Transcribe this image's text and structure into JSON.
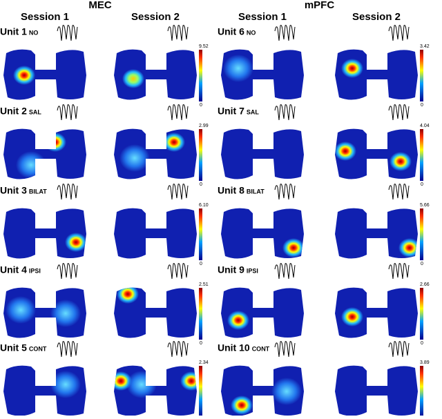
{
  "groups": [
    {
      "title": "MEC",
      "sessions": [
        "Session 1",
        "Session 2"
      ],
      "units": [
        {
          "name": "Unit 1",
          "condition": "NO",
          "colorbar": {
            "max": "9.52",
            "min": "0"
          }
        },
        {
          "name": "Unit 2",
          "condition": "SAL",
          "colorbar": {
            "max": "2.99",
            "min": "0"
          }
        },
        {
          "name": "Unit 3",
          "condition": "BILAT",
          "colorbar": {
            "max": "6.10",
            "min": "0"
          }
        },
        {
          "name": "Unit 4",
          "condition": "IPSI",
          "colorbar": {
            "max": "2.51",
            "min": "0"
          }
        },
        {
          "name": "Unit 5",
          "condition": "CONT",
          "colorbar": {
            "max": "2.34",
            "min": "0"
          }
        }
      ]
    },
    {
      "title": "mPFC",
      "sessions": [
        "Session 1",
        "Session 2"
      ],
      "units": [
        {
          "name": "Unit 6",
          "condition": "NO",
          "colorbar": {
            "max": "3.42",
            "min": "0"
          }
        },
        {
          "name": "Unit 7",
          "condition": "SAL",
          "colorbar": {
            "max": "4.04",
            "min": "0"
          }
        },
        {
          "name": "Unit 8",
          "condition": "BILAT",
          "colorbar": {
            "max": "5.66",
            "min": "0"
          }
        },
        {
          "name": "Unit 9",
          "condition": "IPSI",
          "colorbar": {
            "max": "2.66",
            "min": "0"
          }
        },
        {
          "name": "Unit 10",
          "condition": "CONT",
          "colorbar": {
            "max": "3.89",
            "min": "0"
          }
        }
      ]
    }
  ]
}
